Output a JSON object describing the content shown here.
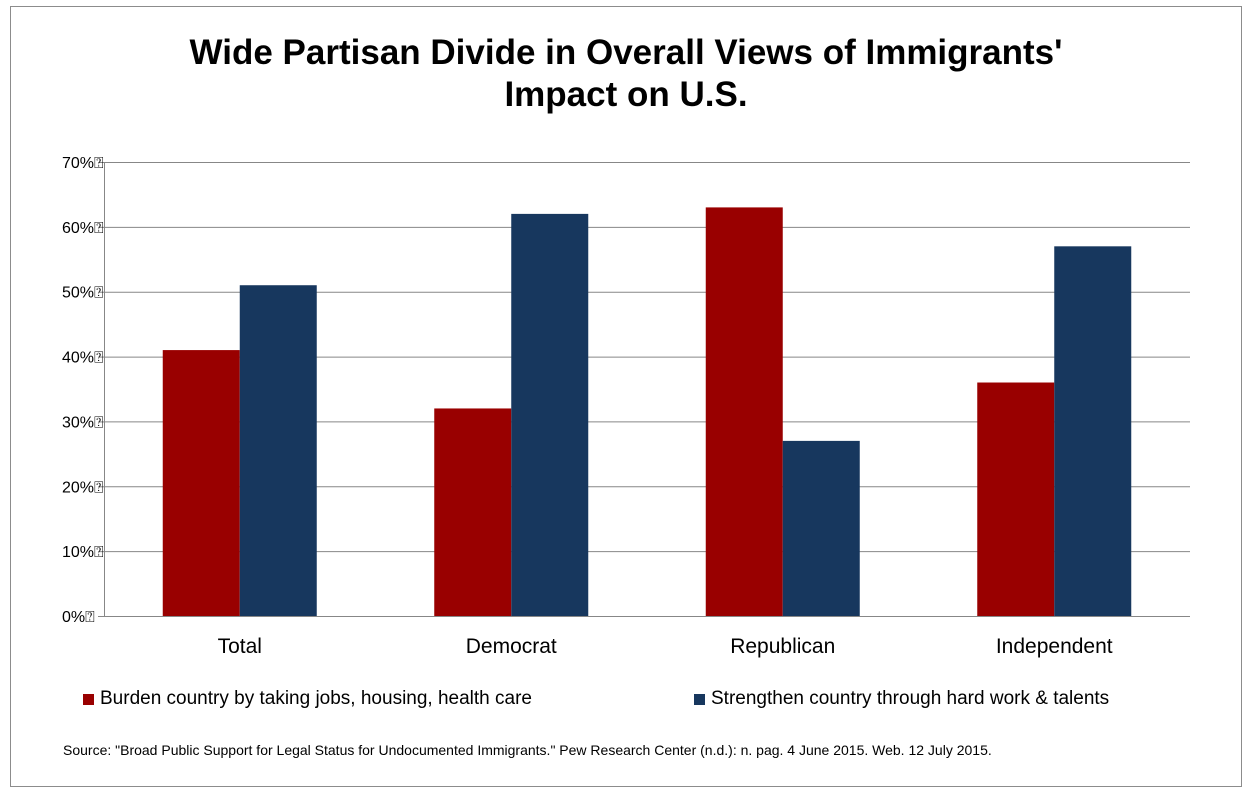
{
  "chart_data": {
    "type": "bar",
    "title_lines": [
      "Wide Partisan Divide in Overall Views of Immigrants'",
      "Impact on U.S."
    ],
    "categories": [
      "Total",
      "Democrat",
      "Republican",
      "Independent"
    ],
    "series": [
      {
        "name": "Burden country by taking jobs, housing, health care",
        "values": [
          41,
          32,
          63,
          36
        ],
        "color": "#990000"
      },
      {
        "name": "Strengthen country through hard work & talents",
        "values": [
          51,
          62,
          27,
          57
        ],
        "color": "#17375e"
      }
    ],
    "ylim": [
      0,
      70
    ],
    "yticks": [
      0,
      10,
      20,
      30,
      40,
      50,
      60,
      70
    ],
    "ytick_labels": [
      "0%⍰",
      "10%⍰",
      "20%⍰",
      "30%⍰",
      "40%⍰",
      "50%⍰",
      "60%⍰",
      "70%⍰"
    ],
    "grid": true,
    "legend_position": "bottom",
    "xlabel": "",
    "ylabel": ""
  },
  "source": "Source: \"Broad Public Support for Legal Status for Undocumented Immigrants.\" Pew Research Center (n.d.): n. pag. 4 June 2015. Web. 12 July 2015."
}
